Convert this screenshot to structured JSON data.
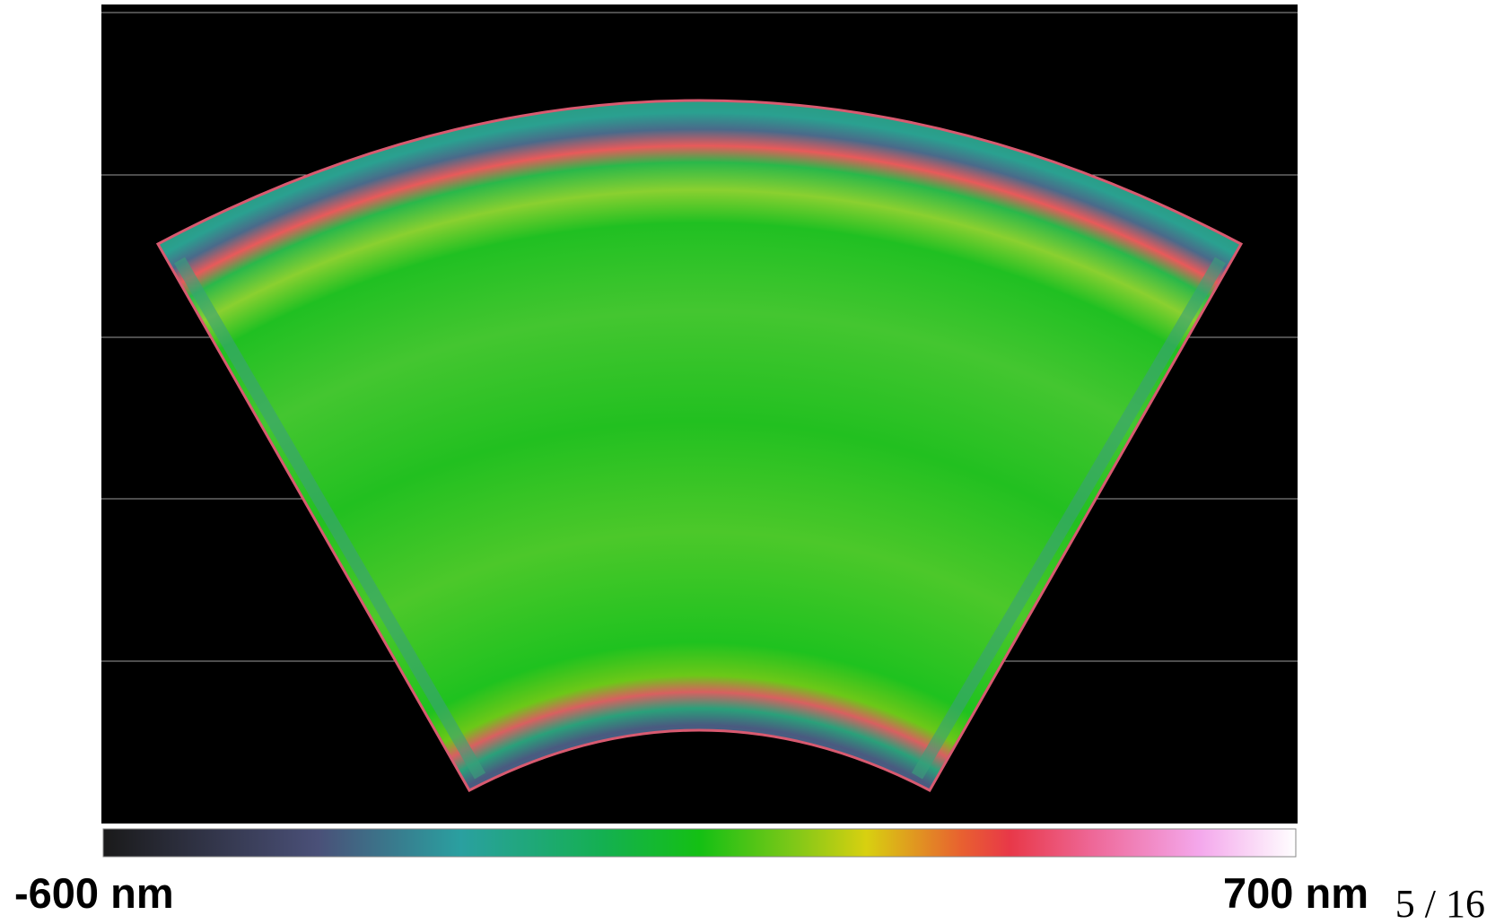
{
  "colorbar": {
    "min_label": "-600 nm",
    "max_label": "700 nm"
  },
  "page_number": "5 / 16"
}
